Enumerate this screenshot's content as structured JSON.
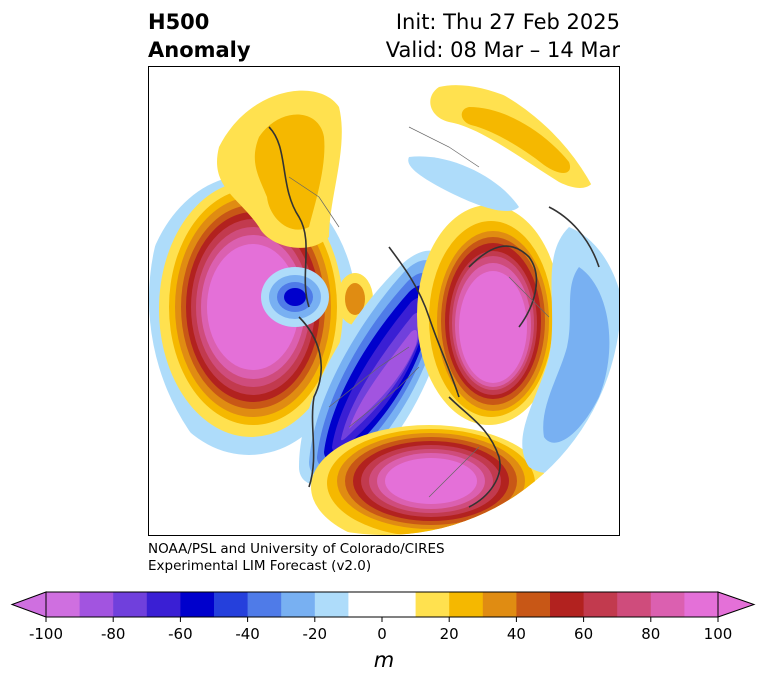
{
  "title": {
    "left_line1": "H500",
    "left_line2": "Anomaly",
    "init": "Init: Thu 27 Feb 2025",
    "valid": "Valid: 08 Mar – 14 Mar"
  },
  "credit": {
    "line1": "NOAA/PSL and University of Colorado/CIRES",
    "line2": "Experimental LIM Forecast (v2.0)"
  },
  "colorbar": {
    "units": "m",
    "min": -100,
    "max": 100,
    "step": 10,
    "ticks": [
      "-100",
      "-80",
      "-60",
      "-40",
      "-20",
      "0",
      "20",
      "40",
      "60",
      "80",
      "100"
    ],
    "colors": [
      "#cf6fe0",
      "#a254e0",
      "#7040dc",
      "#3a1fd4",
      "#0000cc",
      "#2540dc",
      "#4f7be8",
      "#78b0f2",
      "#aedcfa",
      "#ffffff",
      "#ffffff",
      "#ffe14f",
      "#f5b800",
      "#e08c12",
      "#c85716",
      "#b2221f",
      "#c23a4e",
      "#cf4c7c",
      "#db60b0",
      "#e470d8"
    ],
    "under_color": "#cf6fe0",
    "over_color": "#e470d8"
  },
  "anomalies": [
    {
      "name": "north-pacific-positive",
      "value": 100
    },
    {
      "name": "north-america-negative",
      "value": -100
    },
    {
      "name": "eastern-us-positive",
      "value": 100
    },
    {
      "name": "europe-positive",
      "value": 100
    },
    {
      "name": "central-asia-negative",
      "value": -70
    }
  ],
  "map": {
    "projection": "north-polar-stereographic"
  }
}
